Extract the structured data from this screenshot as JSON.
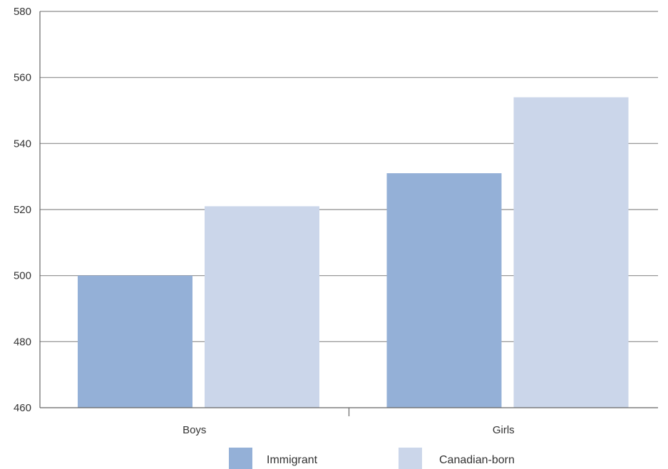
{
  "chart_data": {
    "type": "bar",
    "categories": [
      "Boys",
      "Girls"
    ],
    "series": [
      {
        "name": "Immigrant",
        "values": [
          500,
          531
        ],
        "color": "#94b0d7"
      },
      {
        "name": "Canadian-born",
        "values": [
          521,
          554
        ],
        "color": "#cbd6ea"
      }
    ],
    "ylim": [
      460,
      580
    ],
    "yticks": [
      460,
      480,
      500,
      520,
      540,
      560,
      580
    ],
    "grid": true,
    "legend_position": "bottom",
    "title": "",
    "xlabel": "",
    "ylabel": ""
  }
}
